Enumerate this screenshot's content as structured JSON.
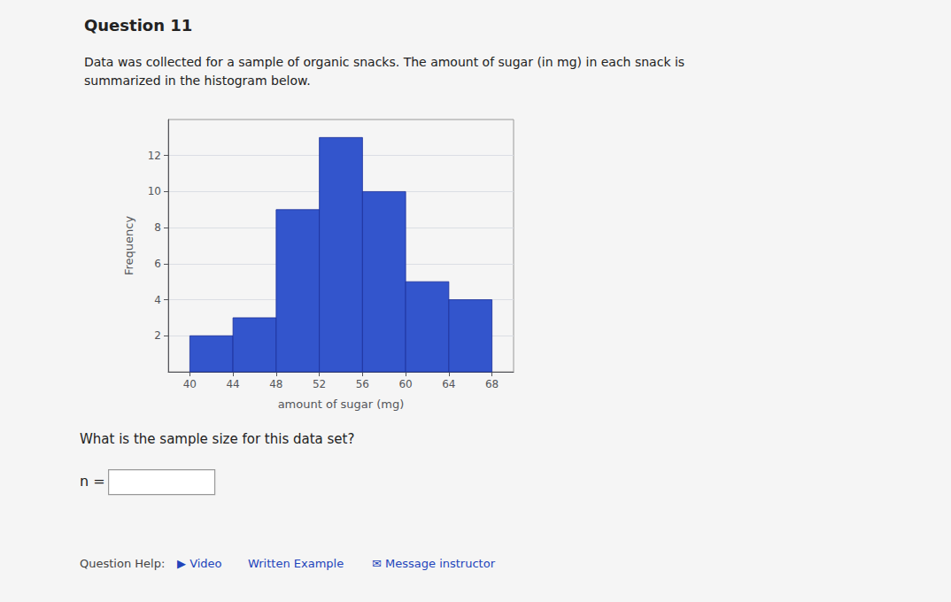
{
  "chart_data": {
    "type": "histogram",
    "title": "Question 11",
    "subtitle": "Data was collected for a sample of organic snacks. The amount of sugar (in mg) in each snack is\nsummarized in the histogram below.",
    "x_label": "amount of sugar (mg)",
    "y_label": "Frequency",
    "bins": [
      40,
      44,
      48,
      52,
      56,
      60,
      64,
      68
    ],
    "values": [
      2,
      3,
      9,
      13,
      10,
      5,
      4
    ],
    "color": "#3355cc",
    "xlim": [
      38,
      70
    ],
    "xticks": [
      40,
      44,
      48,
      52,
      56,
      60,
      64,
      68
    ],
    "ylim": [
      0,
      14
    ],
    "yticks": [
      2,
      4,
      6,
      8,
      10,
      12
    ],
    "grid": true,
    "annotations": [
      "What is the sample size for this data set?",
      "n =",
      "Question Help:",
      "▶ Video",
      "Written Example",
      "✉ Message instructor"
    ]
  }
}
